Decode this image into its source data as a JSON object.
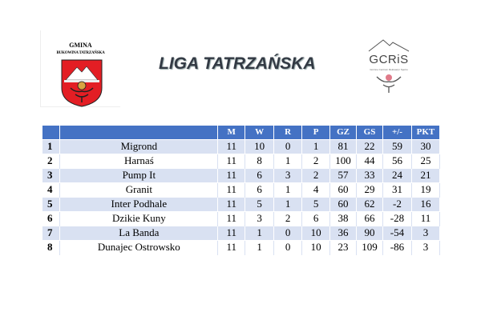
{
  "logo_left": {
    "line1": "GMINA",
    "line2": "BUKOWINA TATRZAŃSKA"
  },
  "title": "LIGA TATRZAŃSKA",
  "logo_right": {
    "name": "GCRiS",
    "subtitle": "Gminne Centrum Rekreacji i Sportu"
  },
  "colors": {
    "header": "#4472C4",
    "row_alt": "#D9E1F2"
  },
  "table": {
    "headers": [
      "",
      "",
      "M",
      "W",
      "R",
      "P",
      "GZ",
      "GS",
      "+/-",
      "PKT"
    ],
    "rows": [
      [
        "1",
        "Migrond",
        "11",
        "10",
        "0",
        "1",
        "81",
        "22",
        "59",
        "30"
      ],
      [
        "2",
        "Harnaś",
        "11",
        "8",
        "1",
        "2",
        "100",
        "44",
        "56",
        "25"
      ],
      [
        "3",
        "Pump It",
        "11",
        "6",
        "3",
        "2",
        "57",
        "33",
        "24",
        "21"
      ],
      [
        "4",
        "Granit",
        "11",
        "6",
        "1",
        "4",
        "60",
        "29",
        "31",
        "19"
      ],
      [
        "5",
        "Inter Podhale",
        "11",
        "5",
        "1",
        "5",
        "60",
        "62",
        "-2",
        "16"
      ],
      [
        "6",
        "Dzikie Kuny",
        "11",
        "3",
        "2",
        "6",
        "38",
        "66",
        "-28",
        "11"
      ],
      [
        "7",
        "La Banda",
        "11",
        "1",
        "0",
        "10",
        "36",
        "90",
        "-54",
        "3"
      ],
      [
        "8",
        "Dunajec Ostrowsko",
        "11",
        "1",
        "0",
        "10",
        "23",
        "109",
        "-86",
        "3"
      ]
    ]
  }
}
